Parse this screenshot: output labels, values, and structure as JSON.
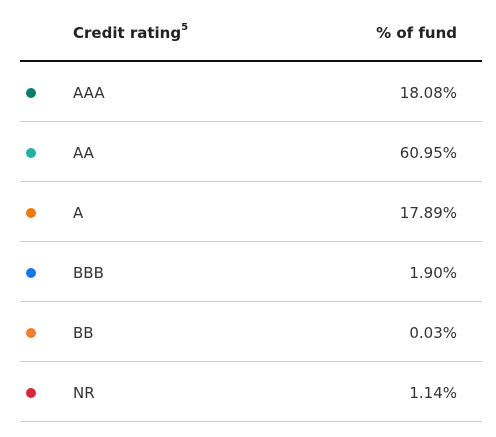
{
  "table": {
    "header": {
      "rating": "Credit rating",
      "footnote": "5",
      "share": "% of fund"
    },
    "rows": [
      {
        "rating": "AAA",
        "share": "18.08%",
        "color": "#0b7a6b"
      },
      {
        "rating": "AA",
        "share": "60.95%",
        "color": "#22b2a4"
      },
      {
        "rating": "A",
        "share": "17.89%",
        "color": "#ef7a12"
      },
      {
        "rating": "BBB",
        "share": "1.90%",
        "color": "#1677e6"
      },
      {
        "rating": "BB",
        "share": "0.03%",
        "color": "#f27d2e"
      },
      {
        "rating": "NR",
        "share": "1.14%",
        "color": "#d8273b"
      }
    ]
  }
}
